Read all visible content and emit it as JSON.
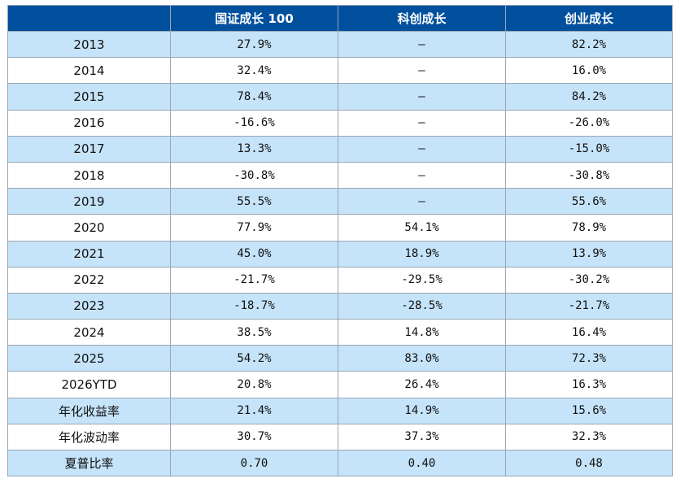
{
  "headers": [
    "",
    "国证成长 100",
    "科创成长",
    "创业成长"
  ],
  "rows": [
    {
      "label": "2013",
      "values": [
        "27.9%",
        "–",
        "82.2%"
      ]
    },
    {
      "label": "2014",
      "values": [
        "32.4%",
        "–",
        "16.0%"
      ]
    },
    {
      "label": "2015",
      "values": [
        "78.4%",
        "–",
        "84.2%"
      ]
    },
    {
      "label": "2016",
      "values": [
        "-16.6%",
        "–",
        "-26.0%"
      ]
    },
    {
      "label": "2017",
      "values": [
        "13.3%",
        "–",
        "-15.0%"
      ]
    },
    {
      "label": "2018",
      "values": [
        "-30.8%",
        "–",
        "-30.8%"
      ]
    },
    {
      "label": "2019",
      "values": [
        "55.5%",
        "–",
        "55.6%"
      ]
    },
    {
      "label": "2020",
      "values": [
        "77.9%",
        "54.1%",
        "78.9%"
      ]
    },
    {
      "label": "2021",
      "values": [
        "45.0%",
        "18.9%",
        "13.9%"
      ]
    },
    {
      "label": "2022",
      "values": [
        "-21.7%",
        "-29.5%",
        "-30.2%"
      ]
    },
    {
      "label": "2023",
      "values": [
        "-18.7%",
        "-28.5%",
        "-21.7%"
      ]
    },
    {
      "label": "2024",
      "values": [
        "38.5%",
        "14.8%",
        "16.4%"
      ]
    },
    {
      "label": "2025",
      "values": [
        "54.2%",
        "83.0%",
        "72.3%"
      ]
    },
    {
      "label": "2026YTD",
      "values": [
        "20.8%",
        "26.4%",
        "16.3%"
      ]
    },
    {
      "label": "年化收益率",
      "values": [
        "21.4%",
        "14.9%",
        "15.6%"
      ]
    },
    {
      "label": "年化波动率",
      "values": [
        "30.7%",
        "37.3%",
        "32.3%"
      ]
    },
    {
      "label": "夏普比率",
      "values": [
        "0.70",
        "0.40",
        "0.48"
      ]
    }
  ],
  "colors": {
    "header_bg": "#00509e",
    "header_text": "#ffffff",
    "row_shaded": "#c5e3f9",
    "row_plain": "#ffffff",
    "border": "#9aa7b5"
  }
}
